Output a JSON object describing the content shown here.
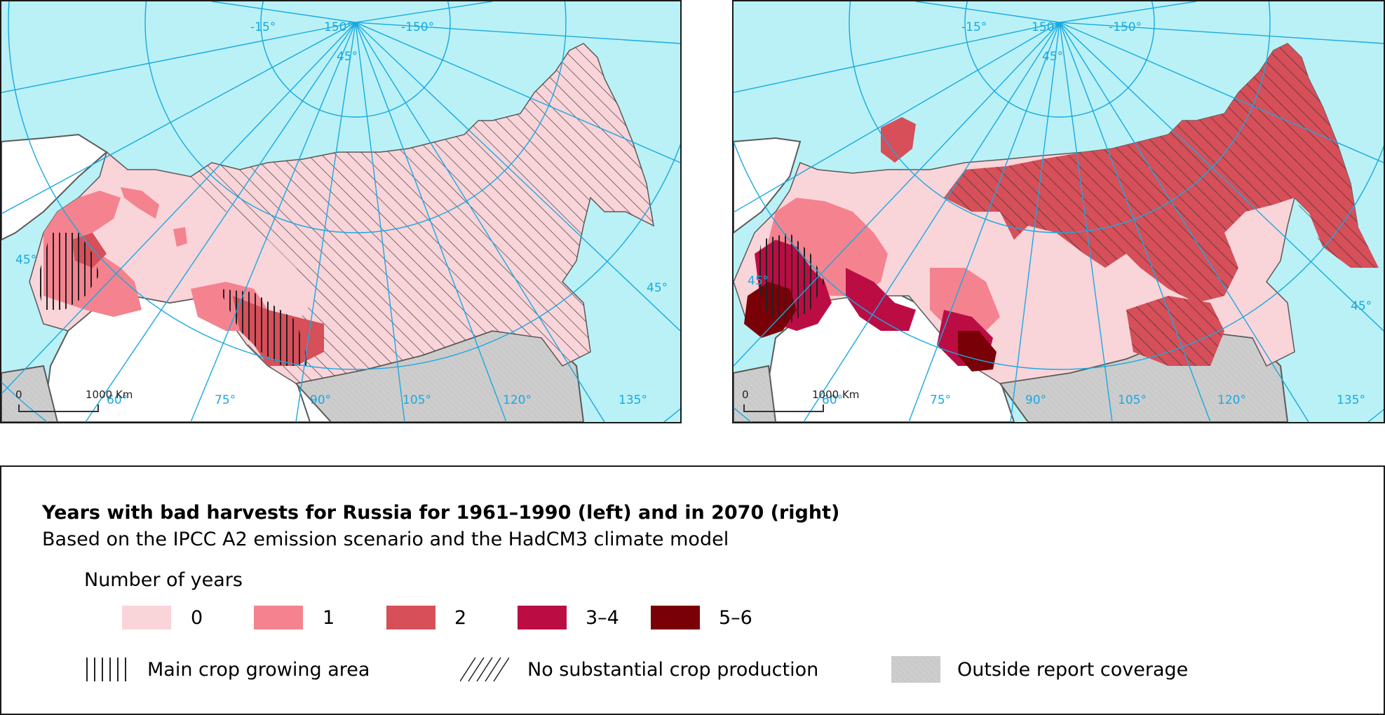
{
  "title": "Years with bad harvests for Russia for 1961–1990 (left) and in 2070 (right)",
  "subtitle": "Based on the IPCC A2 emission scenario and the HadCM3 climate model",
  "legend": {
    "heading": "Number of years",
    "classes": [
      {
        "label": "0",
        "color": "#f9d4d9"
      },
      {
        "label": "1",
        "color": "#f4838f"
      },
      {
        "label": "2",
        "color": "#d64f59"
      },
      {
        "label": "3–4",
        "color": "#bb0d44"
      },
      {
        "label": "5–6",
        "color": "#7a0008"
      }
    ],
    "patterns": [
      {
        "label": "Main crop growing area",
        "pattern": "vertical-lines"
      },
      {
        "label": "No substantial crop production",
        "pattern": "diagonal-lines"
      },
      {
        "label": "Outside report coverage",
        "pattern": "grey-fill"
      }
    ]
  },
  "maps": {
    "left": {
      "period": "1961–1990",
      "degree_labels": {
        "top1": "-15°",
        "top2": "150°",
        "top3": "-150°",
        "top_lat": "45°",
        "left_lat": "45°",
        "right_lat": "45°",
        "bottom": [
          "60°",
          "75°",
          "90°",
          "105°",
          "120°",
          "135°"
        ]
      },
      "scale_zero": "0",
      "scale_value": "1000 Km"
    },
    "right": {
      "period": "2070",
      "degree_labels": {
        "top1": "-15°",
        "top2": "150°",
        "top3": "-150°",
        "top_lat": "45°",
        "left_lat": "45°",
        "right_lat": "45°",
        "bottom": [
          "60°",
          "75°",
          "90°",
          "105°",
          "120°",
          "135°"
        ]
      },
      "scale_zero": "0",
      "scale_value": "1000 Km"
    }
  },
  "colors": {
    "sea": "#b9f1f6",
    "graticule": "#1aa9e0",
    "other_land": "#ffffff",
    "outside_coverage": "#cdcdcd",
    "border": "#5a5a5a"
  }
}
